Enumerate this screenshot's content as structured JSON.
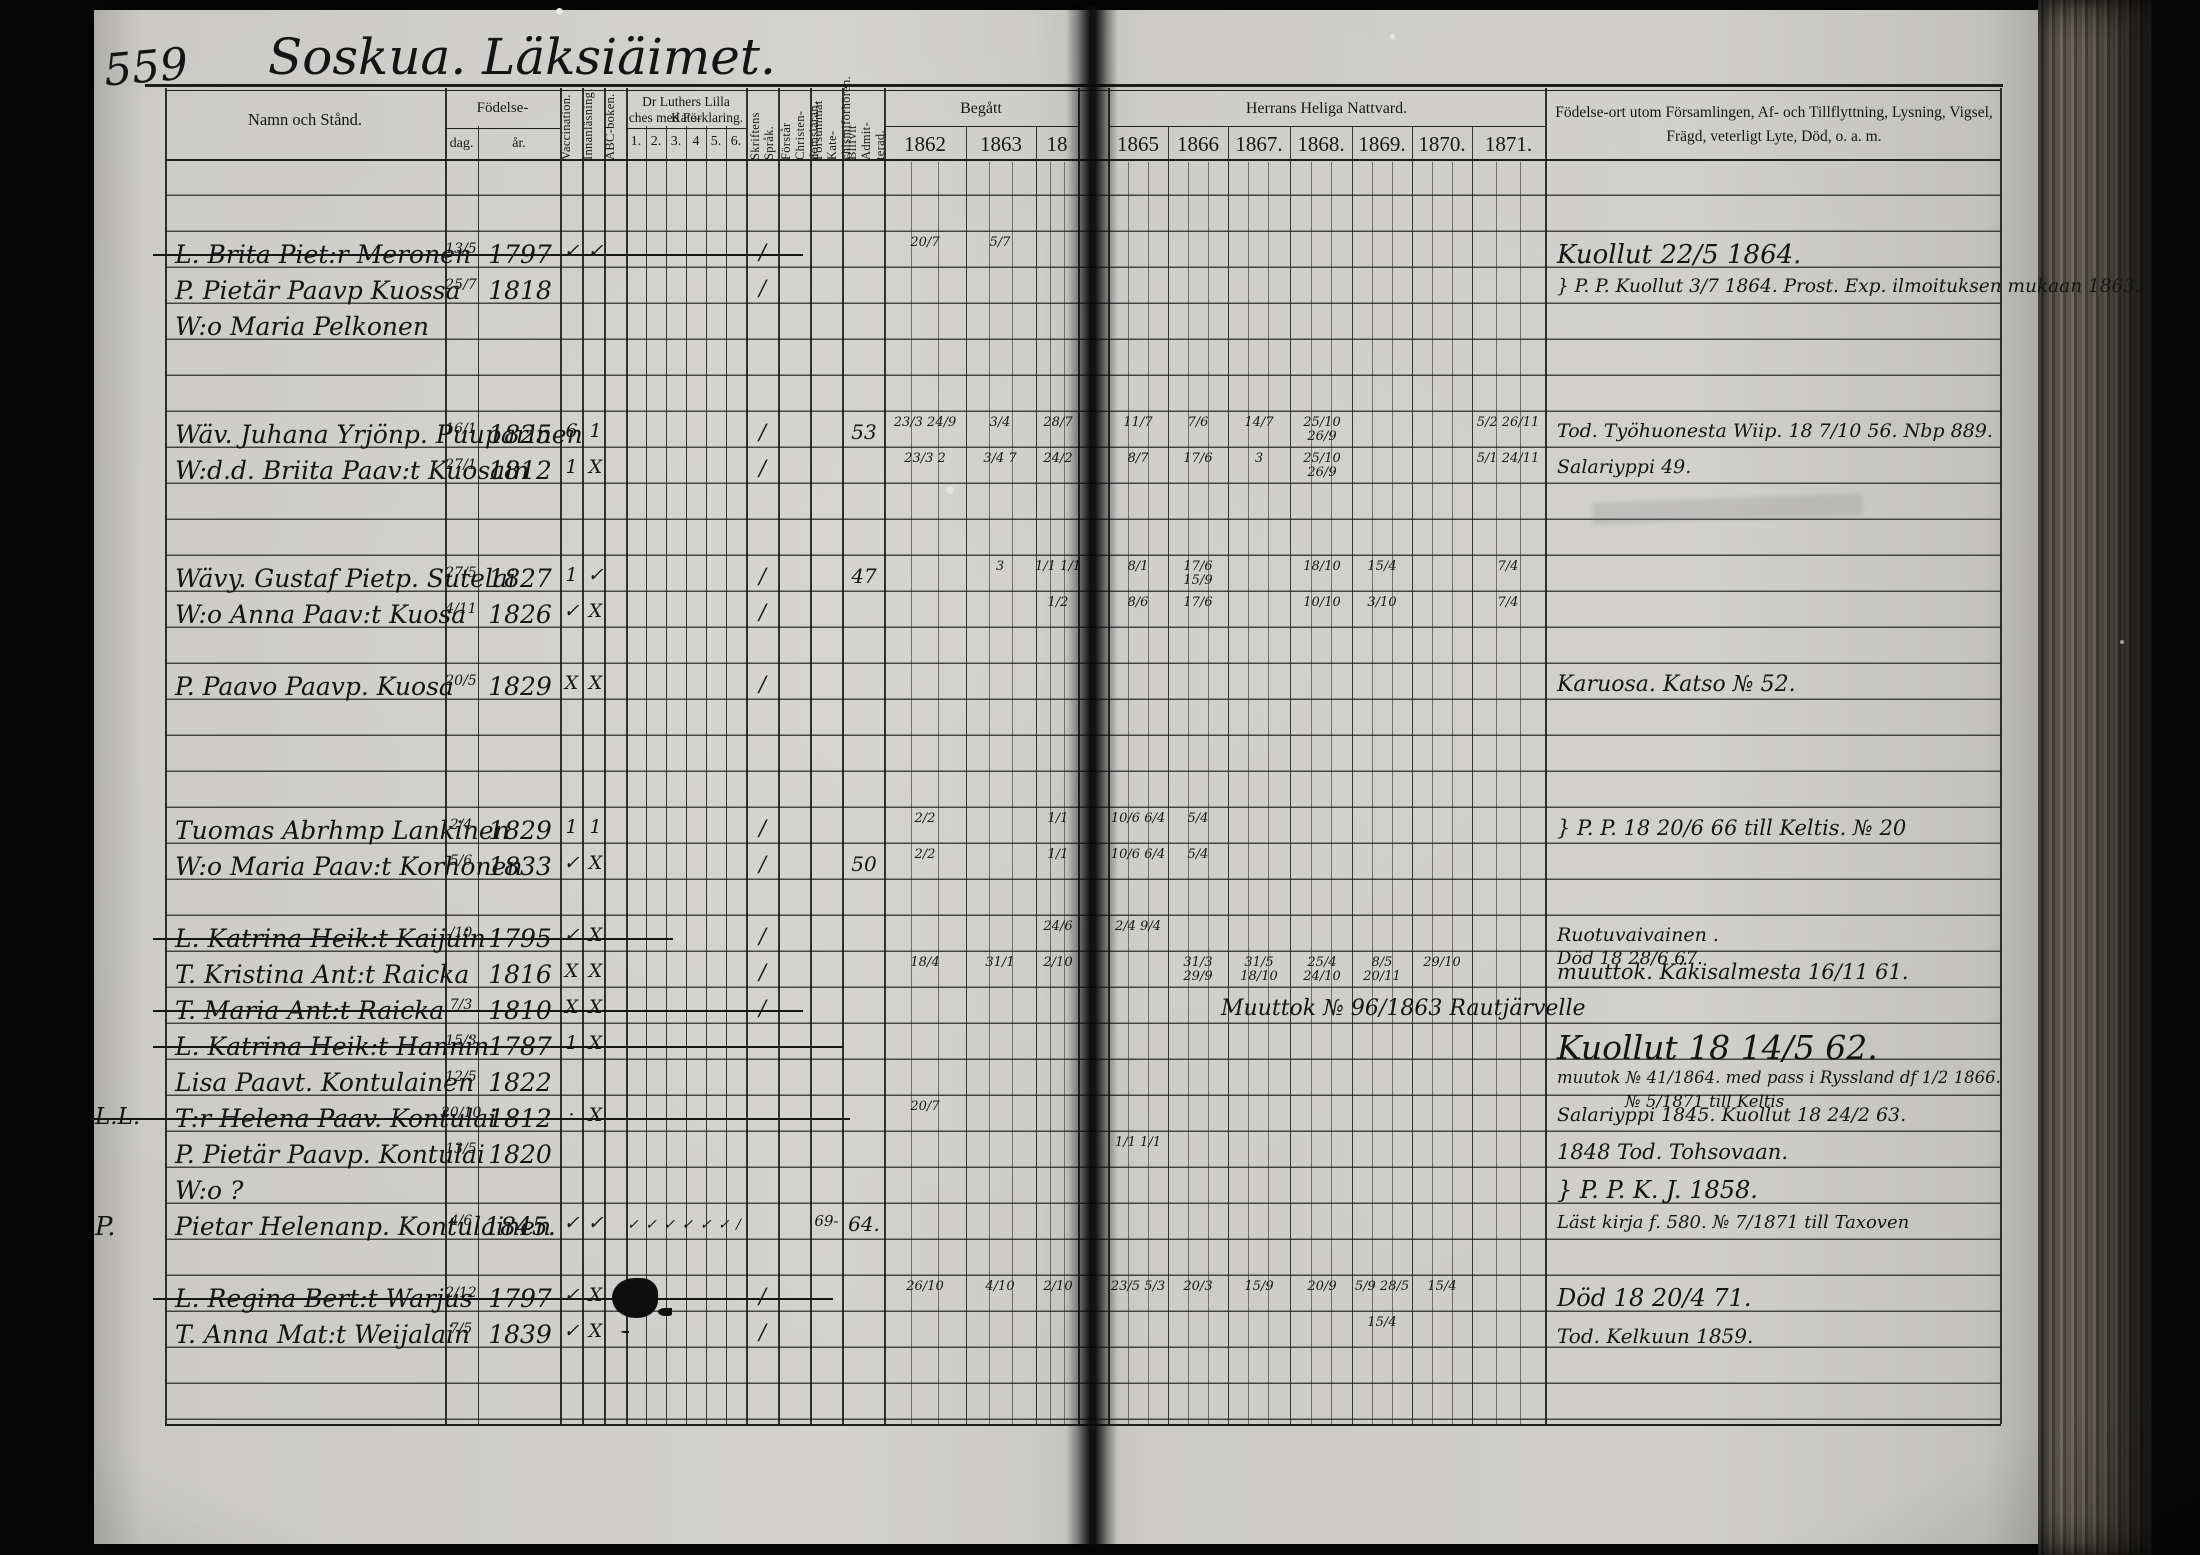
{
  "page": {
    "number": "559",
    "title": "Soskua. Läksiäimet."
  },
  "headers": {
    "name": "Namn och Stånd.",
    "fodelse": "Födelse-",
    "dag": "dag.",
    "ar": "år.",
    "vaccination": "Vaccination.",
    "innanlasning": "Innanläsning.",
    "abc": "ABC-boken.",
    "kat1": "Dr Luthers Lilla Kate-",
    "kat2": "ches med Förklaring.",
    "kat_cols": [
      "1.",
      "2.",
      "3.",
      "4",
      "5.",
      "6."
    ],
    "skrift": "Skriftens Språk.",
    "forstar": "Förstår Christen- domsläran.",
    "forsummat": "Försummat Kate- chismiförhören.",
    "admit": "Blifvit Admit- terad.",
    "begatt": "Begått",
    "nattvard": "Herrans Heliga Nattvard.",
    "notes1": "Födelse-ort utom Församlingen, Af- och Tillflyttning, Lysning, Vigsel,",
    "notes2": "Frägd, veterligt Lyte, Död, o. a. m.",
    "y62": "1862",
    "y63": "1863",
    "y18": "18",
    "y65": "1865",
    "y66": "1866",
    "y67": "1867.",
    "y68": "1868.",
    "y69": "1869.",
    "y70": "1870.",
    "y71": "1871."
  },
  "rows": [
    {
      "n": "L. Brita Piet:r Meronen",
      "d": "13/5",
      "y": "1797",
      "v": "✓",
      "i": "✓",
      "s": "/",
      "c62": "20/7",
      "c63": "5/7",
      "note": "Kuollut 22/5 1864."
    },
    {
      "n": "P. Pietär Paavp Kuossa",
      "d": "25/7",
      "y": "1818",
      "s": "/",
      "note": "} P. P. Kuollut 3/7 1864. Prost. Exp. ilmoituksen mukaan 1863."
    },
    {
      "n": "W:o Maria Pelkonen"
    },
    {
      "n": "Wäv. Juhana Yrjönp. Puuparinen",
      "d": "16/1",
      "y": "1825",
      "v": "6",
      "i": "1",
      "s": "/",
      "a": "53",
      "c62": "23/3 24/9",
      "c63": "3/4",
      "c18": "28/7",
      "c65": "11/7",
      "c66": "7/6",
      "c67": "14/7",
      "c68": "25/10 26/9",
      "c71": "5/2 26/11",
      "note": "Tod. Työhuonesta Wiip. 18 7/10 56.   Nbp 889."
    },
    {
      "n": "W:d.d. Briita Paav:t Kuosain",
      "d": "27/1",
      "y": "1812",
      "v": "1",
      "i": "X",
      "s": "/",
      "c62": "23/3 2",
      "c63": "3/4 7",
      "c18": "24/2",
      "c65": "8/7",
      "c66": "17/6",
      "c67": "3",
      "c68": "25/10 26/9",
      "c71": "5/1 24/11",
      "note": "Salariyppi 49."
    },
    {
      "n": "Wävy. Gustaf Pietp. Sutelai",
      "d": "27/5",
      "y": "1827",
      "v": "1",
      "i": "✓",
      "s": "/",
      "a": "47",
      "c63": "3",
      "c18": "1/1 1/1",
      "c65": "8/1",
      "c66": "17/6 15/9",
      "c68": "18/10",
      "c69": "15/4",
      "c71": "7/4"
    },
    {
      "n": "W:o Anna Paav:t Kuosa",
      "d": "4/11",
      "y": "1826",
      "v": "✓",
      "i": "X",
      "s": "/",
      "c18": "1/2",
      "c65": "8/6",
      "c66": "17/6",
      "c68": "10/10",
      "c69": "3/10",
      "c71": "7/4"
    },
    {
      "n": "P. Paavo Paavp. Kuosa",
      "d": "20/5",
      "y": "1829",
      "v": "X",
      "i": "X",
      "s": "/",
      "note": "Karuosa. Katso № 52."
    },
    {
      "n": "Tuomas Abrhmp Lankinen",
      "d": "2/4",
      "y": "1829",
      "v": "1",
      "i": "1",
      "s": "/",
      "c62": "2/2",
      "c18": "1/1",
      "c65": "10/6 6/4",
      "c66": "5/4",
      "note": "} P. P.     18 20/6 66 till Keltis. № 20"
    },
    {
      "n": "W:o Maria Paav:t Korhonen",
      "d": "5/6",
      "y": "1833",
      "v": "✓",
      "i": "X",
      "s": "/",
      "a": "50",
      "c62": "2/2",
      "c18": "1/1",
      "c65": "10/6 6/4",
      "c66": "5/4"
    },
    {
      "n": "L. Katrina Heik:t Kaijuin",
      "d": "/10",
      "y": "1795",
      "v": "✓",
      "i": "X",
      "s": "/",
      "c18": "24/6",
      "c65": "2/4 9/4",
      "note": "Ruotuvaivainen .",
      "note2": "Död 18 28/6 67."
    },
    {
      "n": "T. Kristina Ant:t Raicka",
      "y": "1816",
      "v": "X",
      "i": "X",
      "s": "/",
      "c62": "18/4",
      "c63": "31/1",
      "c18": "2/10",
      "c66": "31/3 29/9",
      "c67": "31/5 18/10",
      "c68": "25/4 24/10",
      "c69": "8/5 20/11",
      "c70": "29/10",
      "note": "muuttok. Käkisalmesta 16/11 61."
    },
    {
      "n": "T. Maria Ant:t Raicka",
      "d": "7/3",
      "y": "1810",
      "v": "X",
      "i": "X",
      "s": "/",
      "span": "Muuttok № 96/1863   Rautjärvelle"
    },
    {
      "n": "L. Katrina Heik:t Hannin",
      "d": "15/3",
      "y": "1787",
      "v": "1",
      "i": "X",
      "note": "Kuollut 18 14/5 62."
    },
    {
      "n": "Lisa Paavt. Kontulainen",
      "d": "12/5",
      "y": "1822",
      "note": "muutok № 41/1864.  med pass i Ryssland df 1/2 1866.",
      "note2": "№ 5/1871 till Keltis"
    },
    {
      "m": "L.L.",
      "n": "T:r Helena Paav. Kontulai",
      "d": "20/10",
      "y": "1812",
      "v": "·",
      "i": "X",
      "c62": "20/7",
      "note": "Salariyppi 1845.    Kuollut 18 24/2 63."
    },
    {
      "n": "P. Pietär Paavp. Kontulai",
      "d": "13/5",
      "y": "1820",
      "c65": "1/1 1/1",
      "note": "1848 Tod. Tohsovaan."
    },
    {
      "n": "W:o ?",
      "note": "} P. P. K. J. 1858."
    },
    {
      "m": "P.",
      "n": "Pietar Helenanp. Kontulainen",
      "d": "4/6",
      "y": "1845.",
      "v": "✓",
      "i": "✓",
      "k": "✓ ✓ ✓ ✓ ✓ ✓ /",
      "fs": "69-",
      "a": "64.",
      "note": "Läst kirja f. 580.  № 7/1871 till Taxoven"
    },
    {
      "n": "L. Regina Bert:t Warjus",
      "d": "2/12",
      "y": "1797",
      "v": "✓",
      "i": "X",
      "s": "/",
      "c62": "26/10",
      "c63": "4/10",
      "c18": "2/10",
      "c65": "23/5 5/3",
      "c66": "20/3",
      "c67": "15/9",
      "c68": "20/9",
      "c69": "5/9 28/5",
      "c70": "15/4",
      "note": "Död 18 20/4 71."
    },
    {
      "n": "T. Anna Mat:t Weijalain",
      "d": "7/5",
      "y": "1839",
      "v": "✓",
      "i": "X",
      "s": "/",
      "c69": "15/4",
      "note": "Tod. Kelkuun 1859."
    }
  ]
}
